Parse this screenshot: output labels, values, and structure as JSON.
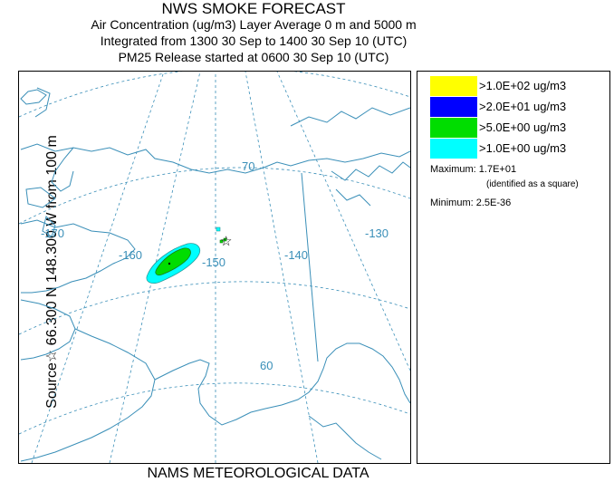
{
  "header": {
    "title": "NWS SMOKE FORECAST",
    "line1": "Air Concentration (ug/m3) Layer Average    0 m and  5000 m",
    "line2": "Integrated from 1300 30 Sep to 1400 30 Sep 10 (UTC)",
    "line3": "PM25 Release started at 0600 30 Sep 10 (UTC)"
  },
  "side_label": "Source☆ 66.300  N 148.300  W    from   100 m",
  "footer": "NAMS METEOROLOGICAL DATA",
  "map": {
    "longitude_labels": [
      "-170",
      "-160",
      "-150",
      "-140",
      "-130"
    ],
    "latitude_labels": [
      "70",
      "60"
    ],
    "source_marker": "☆",
    "colors": {
      "coast": "#3a8fb8",
      "grid": "#3a8fb8"
    }
  },
  "legend": {
    "items": [
      {
        "label": ">1.0E+02 ug/m3",
        "color": "#ffff00"
      },
      {
        "label": ">2.0E+01 ug/m3",
        "color": "#0000ff"
      },
      {
        "label": ">5.0E+00 ug/m3",
        "color": "#00dd00"
      },
      {
        "label": ">1.0E+00 ug/m3",
        "color": "#00ffff"
      }
    ],
    "maximum": "Maximum: 1.7E+01",
    "maximum_note": "(identified as a square)",
    "minimum": "Minimum: 2.5E-36"
  }
}
